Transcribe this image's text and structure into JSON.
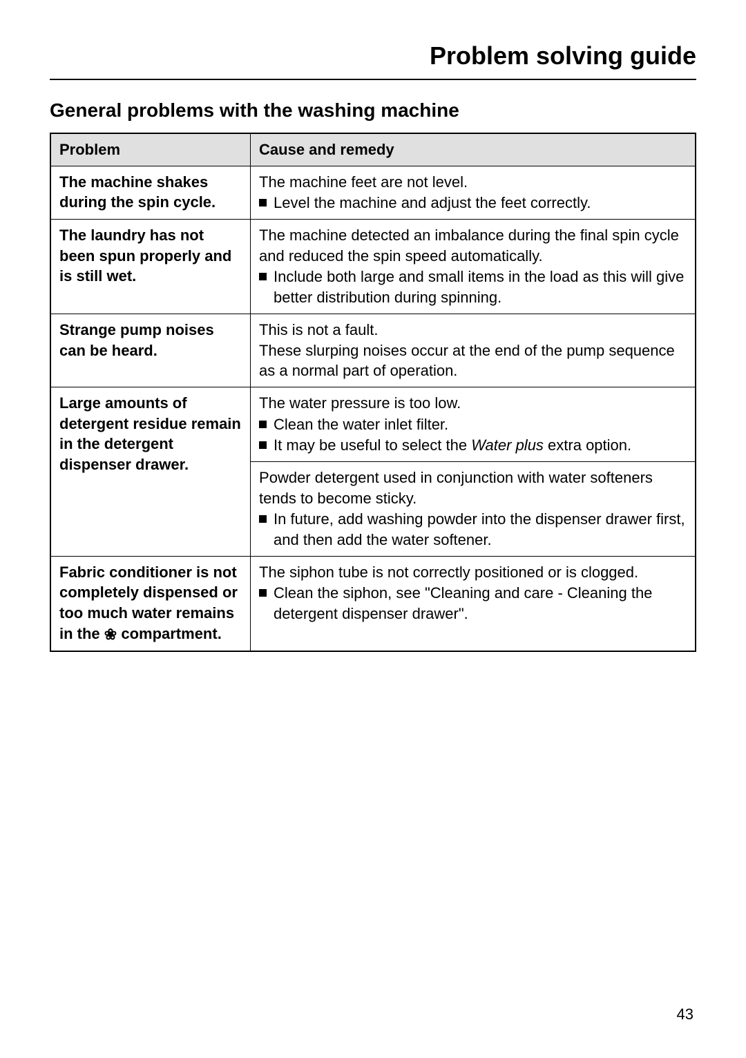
{
  "page": {
    "title": "Problem solving guide",
    "sectionTitle": "General problems with the washing machine",
    "pageNumber": "43"
  },
  "table": {
    "headers": {
      "problem": "Problem",
      "remedy": "Cause and remedy"
    },
    "rows": [
      {
        "problem": "The machine shakes during the spin cycle.",
        "remedyBlocks": [
          {
            "intro": "The machine feet are not level.",
            "bullets": [
              "Level the machine and adjust the feet correctly."
            ]
          }
        ]
      },
      {
        "problem": "The laundry has not been spun properly and is still wet.",
        "remedyBlocks": [
          {
            "intro": "The machine detected an imbalance during the final spin cycle and reduced the spin speed automatically.",
            "bullets": [
              "Include both large and small items in the load as this will give better distribution during spinning."
            ]
          }
        ]
      },
      {
        "problem": "Strange pump noises can be heard.",
        "remedyBlocks": [
          {
            "intro": "This is not a fault.",
            "intro2": "These slurping noises occur at the end of the pump sequence as a normal part of operation.",
            "bullets": []
          }
        ]
      },
      {
        "problem": "Large amounts of detergent residue remain in the detergent dispenser drawer.",
        "problemRowspan": 2,
        "remedyBlocks": [
          {
            "intro": "The water pressure is too low.",
            "bullets": [
              "Clean the water inlet filter.",
              "It may be useful to select the <i>Water plus</i> extra option."
            ]
          }
        ]
      },
      {
        "remedyBlocks": [
          {
            "intro": "Powder detergent used in conjunction with water softeners tends to become sticky.",
            "bullets": [
              "In future, add washing powder into the dispenser drawer first, and then add the water softener."
            ]
          }
        ]
      },
      {
        "problemHtml": "Fabric conditioner is not completely dispensed or too much water remains in the <span class=\"flower-icon\">❀</span> compartment.",
        "remedyBlocks": [
          {
            "intro": "The siphon tube is not correctly positioned or is clogged.",
            "bullets": [
              "Clean the siphon, see \"Cleaning and care - Cleaning the detergent dispenser drawer\"."
            ]
          }
        ]
      }
    ]
  }
}
